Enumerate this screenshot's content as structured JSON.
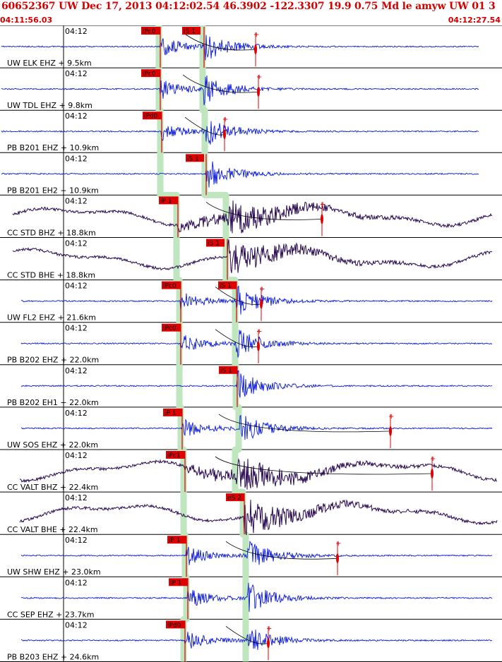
{
  "header": {
    "title": "60652367 UW Dec 17, 2013 04:12:02.54   46.3902 -122.3307 19.9 0.75 Md le amyw UW 01   3",
    "start_time": "04:11:56.03",
    "end_time": "04:12:27.54"
  },
  "colors": {
    "title": "#d40000",
    "trace_blue": "#0a1ad6",
    "trace_dark": "#2a0a52",
    "pick": "#e00000",
    "pick_band": "#bfe6bf",
    "grid": "#000000"
  },
  "chart_data": {
    "type": "seismogram",
    "time_range": [
      "04:11:56.03",
      "04:12:27.54"
    ],
    "tick_label": "04:12",
    "traces": [
      {
        "label": "UW ELK EHZ + 9.5km",
        "component": "EHZ",
        "color": "blue",
        "p_pick": "iPc0",
        "s_pick": "iS 1",
        "has_coda_marker": true
      },
      {
        "label": "UW TDL EHZ + 9.8km",
        "component": "EHZ",
        "color": "blue",
        "p_pick": "iPc0",
        "s_pick": "",
        "has_coda_marker": true
      },
      {
        "label": "PB B201 EHZ + 10.9km",
        "component": "EHZ",
        "color": "blue",
        "p_pick": "iPd0",
        "s_pick": "",
        "has_coda_marker": true
      },
      {
        "label": "PB B201 EH2 + 10.9km",
        "component": "EH2",
        "color": "blue",
        "p_pick": "",
        "s_pick": "iS 1",
        "has_coda_marker": false
      },
      {
        "label": "CC STD BHZ + 18.8km",
        "component": "BHZ",
        "color": "dark",
        "p_pick": "iP 1",
        "s_pick": "",
        "has_coda_marker": true
      },
      {
        "label": "CC STD BHE + 18.8km",
        "component": "BHE",
        "color": "dark",
        "p_pick": "",
        "s_pick": "iS 1",
        "has_coda_marker": false
      },
      {
        "label": "UW FL2 EHZ + 21.6km",
        "component": "EHZ",
        "color": "blue",
        "p_pick": "iPc0",
        "s_pick": "iS 1",
        "has_coda_marker": true
      },
      {
        "label": "PB B202 EHZ + 22.0km",
        "component": "EHZ",
        "color": "blue",
        "p_pick": "iPc0",
        "s_pick": "",
        "has_coda_marker": true
      },
      {
        "label": "PB B202 EH1 + 22.0km",
        "component": "EH1",
        "color": "blue",
        "p_pick": "",
        "s_pick": "iS 1",
        "has_coda_marker": false
      },
      {
        "label": "UW SOS EHZ + 22.0km",
        "component": "EHZ",
        "color": "blue",
        "p_pick": "iP 1",
        "s_pick": "",
        "has_coda_marker": true
      },
      {
        "label": "CC VALT BHZ + 22.4km",
        "component": "BHZ",
        "color": "dark",
        "p_pick": "iPc1",
        "s_pick": "",
        "has_coda_marker": true
      },
      {
        "label": "CC VALT BHE + 22.4km",
        "component": "BHE",
        "color": "dark",
        "p_pick": "",
        "s_pick": "eS 2",
        "has_coda_marker": false
      },
      {
        "label": "UW SHW EHZ + 23.0km",
        "component": "EHZ",
        "color": "blue",
        "p_pick": "iP 1",
        "s_pick": "",
        "has_coda_marker": true
      },
      {
        "label": "CC SEP EHZ + 23.7km",
        "component": "EHZ",
        "color": "blue",
        "p_pick": "iP 1",
        "s_pick": "",
        "has_coda_marker": false
      },
      {
        "label": "PB B203 EHZ + 24.6km",
        "component": "EHZ",
        "color": "blue",
        "p_pick": "iPd0",
        "s_pick": "",
        "has_coda_marker": true
      }
    ]
  }
}
